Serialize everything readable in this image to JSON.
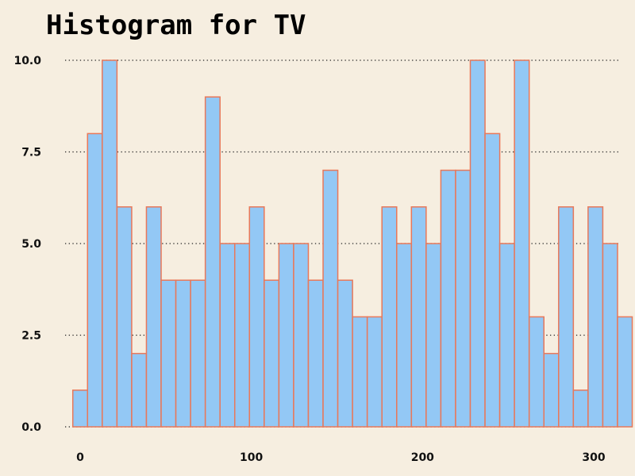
{
  "chart_data": {
    "type": "bar",
    "subtype": "histogram",
    "title": "Histogram for TV",
    "xlabel": "",
    "ylabel": "",
    "bin_width": 8.6,
    "bin_start": -4.3,
    "bins": [
      {
        "x_start": -4.3,
        "x_end": 4.3,
        "count": 1
      },
      {
        "x_start": 4.3,
        "x_end": 12.9,
        "count": 8
      },
      {
        "x_start": 12.9,
        "x_end": 21.5,
        "count": 10
      },
      {
        "x_start": 21.5,
        "x_end": 30.1,
        "count": 6
      },
      {
        "x_start": 30.1,
        "x_end": 38.7,
        "count": 2
      },
      {
        "x_start": 38.7,
        "x_end": 47.3,
        "count": 6
      },
      {
        "x_start": 47.3,
        "x_end": 55.9,
        "count": 4
      },
      {
        "x_start": 55.9,
        "x_end": 64.5,
        "count": 4
      },
      {
        "x_start": 64.5,
        "x_end": 73.1,
        "count": 4
      },
      {
        "x_start": 73.1,
        "x_end": 81.7,
        "count": 9
      },
      {
        "x_start": 81.7,
        "x_end": 90.3,
        "count": 5
      },
      {
        "x_start": 90.3,
        "x_end": 98.9,
        "count": 5
      },
      {
        "x_start": 98.9,
        "x_end": 107.5,
        "count": 6
      },
      {
        "x_start": 107.5,
        "x_end": 116.1,
        "count": 4
      },
      {
        "x_start": 116.1,
        "x_end": 124.7,
        "count": 5
      },
      {
        "x_start": 124.7,
        "x_end": 133.3,
        "count": 5
      },
      {
        "x_start": 133.3,
        "x_end": 141.9,
        "count": 4
      },
      {
        "x_start": 141.9,
        "x_end": 150.5,
        "count": 7
      },
      {
        "x_start": 150.5,
        "x_end": 159.1,
        "count": 4
      },
      {
        "x_start": 159.1,
        "x_end": 167.7,
        "count": 3
      },
      {
        "x_start": 167.7,
        "x_end": 176.3,
        "count": 3
      },
      {
        "x_start": 176.3,
        "x_end": 184.9,
        "count": 6
      },
      {
        "x_start": 184.9,
        "x_end": 193.5,
        "count": 5
      },
      {
        "x_start": 193.5,
        "x_end": 202.1,
        "count": 6
      },
      {
        "x_start": 202.1,
        "x_end": 210.7,
        "count": 5
      },
      {
        "x_start": 210.7,
        "x_end": 219.3,
        "count": 7
      },
      {
        "x_start": 219.3,
        "x_end": 227.9,
        "count": 7
      },
      {
        "x_start": 227.9,
        "x_end": 236.5,
        "count": 10
      },
      {
        "x_start": 236.5,
        "x_end": 245.1,
        "count": 8
      },
      {
        "x_start": 245.1,
        "x_end": 253.7,
        "count": 5
      },
      {
        "x_start": 253.7,
        "x_end": 262.3,
        "count": 10
      },
      {
        "x_start": 262.3,
        "x_end": 270.9,
        "count": 3
      },
      {
        "x_start": 270.9,
        "x_end": 279.5,
        "count": 2
      },
      {
        "x_start": 279.5,
        "x_end": 288.1,
        "count": 6
      },
      {
        "x_start": 288.1,
        "x_end": 296.7,
        "count": 1
      },
      {
        "x_start": 296.7,
        "x_end": 305.3,
        "count": 6
      },
      {
        "x_start": 305.3,
        "x_end": 313.9,
        "count": 5
      },
      {
        "x_start": 313.9,
        "x_end": 322.5,
        "count": 3
      }
    ],
    "xlim": [
      -12,
      312
    ],
    "ylim": [
      0,
      10.8
    ],
    "x_ticks": [
      0,
      100,
      200,
      300
    ],
    "x_tick_labels": [
      "0",
      "100",
      "200",
      "300"
    ],
    "y_ticks": [
      0,
      2.5,
      5,
      7.5,
      10
    ],
    "y_tick_labels": [
      "0.0",
      "2.5",
      "5.0",
      "7.5",
      "10.0"
    ],
    "grid": "horizontal dotted",
    "legend": "none",
    "colors": {
      "background": "#f6eee0",
      "bar_fill": "#93c8f5",
      "bar_edge": "#e8785a",
      "grid": "#222222",
      "text": "#111111"
    }
  }
}
